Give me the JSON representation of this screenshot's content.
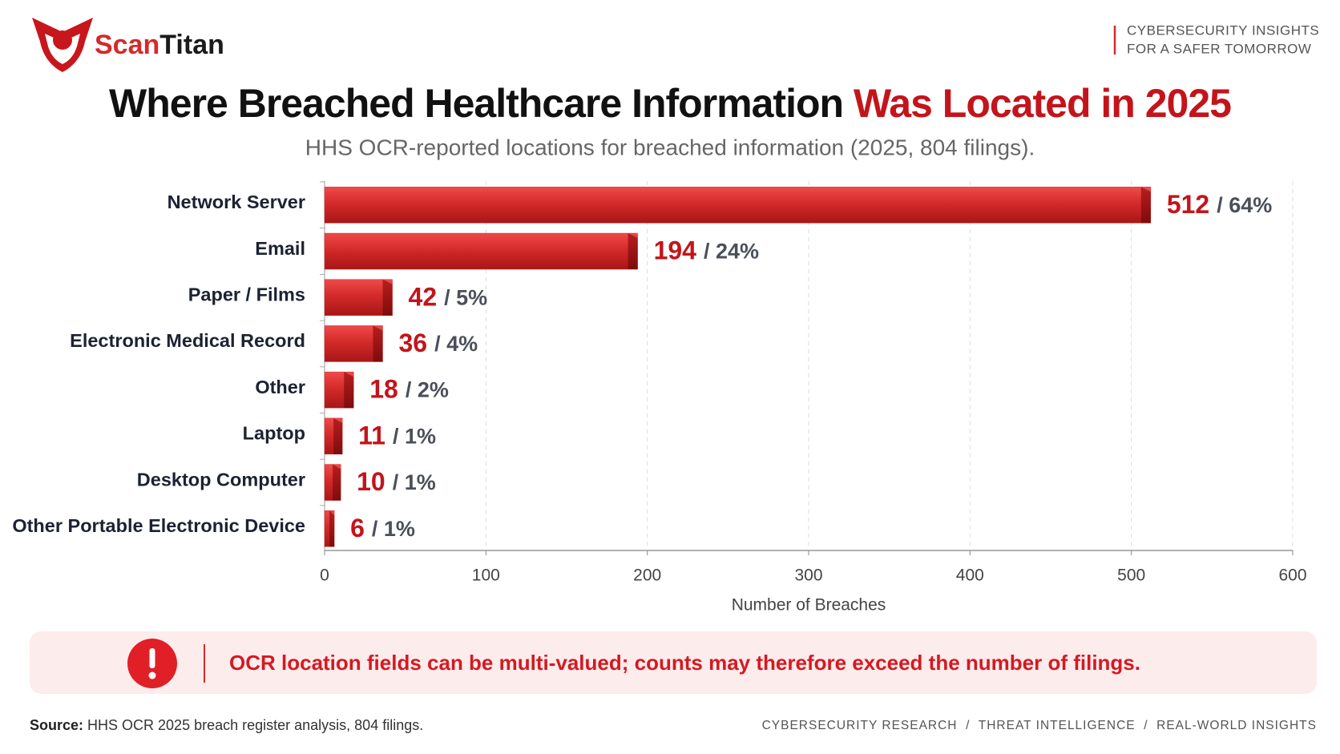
{
  "header": {
    "brand_first": "Scan",
    "brand_second": "Titan",
    "tagline": [
      "CYBERSECURITY INSIGHTS",
      "FOR A SAFER TOMORROW"
    ]
  },
  "chart_data": {
    "type": "barh",
    "title_main": "Where Breached Healthcare Information ",
    "title_highlight": "Was Located in 2025",
    "subtitle": "HHS OCR-reported locations for breached information (2025, 804 filings).",
    "categories": [
      "Network Server",
      "Email",
      "Paper / Films",
      "Electronic Medical Record",
      "Other",
      "Laptop",
      "Desktop Computer",
      "Other Portable Electronic Device"
    ],
    "values": [
      512,
      194,
      42,
      36,
      18,
      11,
      10,
      6
    ],
    "share_labels": [
      "/ 64%",
      "/ 24%",
      "/ 5%",
      "/ 4%",
      "/ 2%",
      "/ 1%",
      "/ 1%",
      "/ 1%"
    ],
    "color": "#d42a2a",
    "xlim": [
      0,
      600
    ],
    "xticks": [
      0,
      100,
      200,
      300,
      400,
      500,
      600
    ],
    "xlabel": "Number of Breaches",
    "grid": true
  },
  "note": "OCR location fields can be multi-valued; counts may therefore exceed the number of filings.",
  "footer": {
    "source_label": "Source:",
    "source_text": " HHS OCR 2025 breach register analysis, 804 filings.",
    "links": "CYBERSECURITY RESEARCH  /  THREAT INTELLIGENCE  /  REAL-WORLD INSIGHTS"
  }
}
